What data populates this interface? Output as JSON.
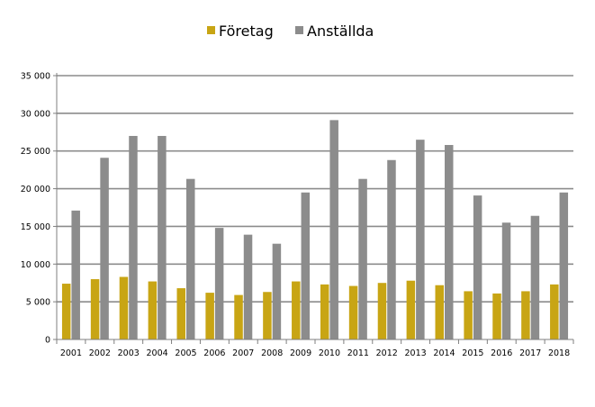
{
  "chart_data": {
    "type": "bar",
    "title": "",
    "xlabel": "",
    "ylabel": "",
    "categories": [
      "2001",
      "2002",
      "2003",
      "2004",
      "2005",
      "2006",
      "2007",
      "2008",
      "2009",
      "2010",
      "2011",
      "2012",
      "2013",
      "2014",
      "2015",
      "2016",
      "2017",
      "2018"
    ],
    "series": [
      {
        "name": "Företag",
        "color": "#c8a514",
        "values": [
          7400,
          8000,
          8300,
          7700,
          6800,
          6200,
          5900,
          6300,
          7700,
          7300,
          7100,
          7500,
          7800,
          7200,
          6400,
          6100,
          6400,
          7300
        ]
      },
      {
        "name": "Anställda",
        "color": "#8c8c8c",
        "values": [
          17100,
          24100,
          27000,
          27000,
          21300,
          14800,
          13900,
          12700,
          19500,
          29100,
          21300,
          23800,
          26500,
          25800,
          19100,
          15500,
          16400,
          19500
        ]
      }
    ],
    "ylim": [
      0,
      35000
    ],
    "yticks": [
      0,
      5000,
      10000,
      15000,
      20000,
      25000,
      30000,
      35000
    ],
    "ytick_labels": [
      "0",
      "5 000",
      "10 000",
      "15 000",
      "20 000",
      "25 000",
      "30 000",
      "35 000"
    ],
    "grid": true,
    "legend_position": "top-center"
  }
}
